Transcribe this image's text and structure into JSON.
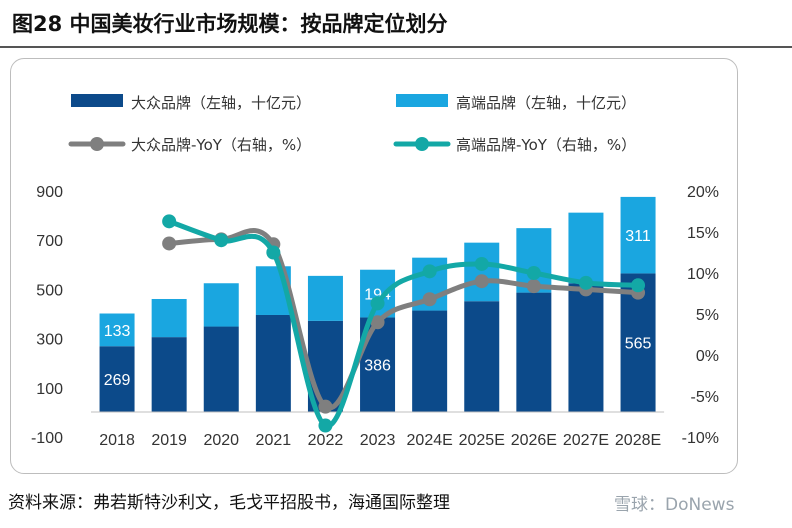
{
  "header": {
    "title": "图28 中国美妆行业市场规模：按品牌定位划分"
  },
  "footer": {
    "source": "资料来源：弗若斯特沙利文，毛戈平招股书，海通国际整理",
    "watermark": "雪球：DoNews"
  },
  "colors": {
    "mass": "#0c4a8a",
    "premium": "#1aa6e0",
    "mass_yoy": "#7f7f7f",
    "premium_yoy": "#13a8a6"
  },
  "chart_data": {
    "type": "bar",
    "stacked": true,
    "categories": [
      "2018",
      "2019",
      "2020",
      "2021",
      "2022",
      "2023",
      "2024E",
      "2025E",
      "2026E",
      "2027E",
      "2028E"
    ],
    "series": [
      {
        "name": "大众品牌（左轴，十亿元）",
        "axis": "left",
        "kind": "bar",
        "values": [
          269,
          306,
          349,
          396,
          372,
          386,
          414,
          452,
          487,
          525,
          565
        ]
      },
      {
        "name": "高端品牌（左轴，十亿元）",
        "axis": "left",
        "kind": "bar",
        "values": [
          133,
          155,
          176,
          198,
          183,
          194,
          215,
          238,
          262,
          287,
          311
        ]
      },
      {
        "name": "大众品牌-YoY（右轴，%）",
        "axis": "right",
        "kind": "line",
        "values": [
          null,
          13.6,
          14.1,
          13.5,
          -6.3,
          4.0,
          6.8,
          9.0,
          8.4,
          8.0,
          7.6
        ]
      },
      {
        "name": "高端品牌-YoY（右轴，%）",
        "axis": "right",
        "kind": "line",
        "values": [
          null,
          16.3,
          14.0,
          12.5,
          -8.6,
          6.3,
          10.2,
          11.1,
          10.0,
          8.8,
          8.5
        ]
      }
    ],
    "data_labels": [
      {
        "category": "2018",
        "series": 0,
        "text": "269"
      },
      {
        "category": "2018",
        "series": 1,
        "text": "133"
      },
      {
        "category": "2023",
        "series": 0,
        "text": "386"
      },
      {
        "category": "2023",
        "series": 1,
        "text": "194"
      },
      {
        "category": "2028E",
        "series": 0,
        "text": "565"
      },
      {
        "category": "2028E",
        "series": 1,
        "text": "311"
      }
    ],
    "left_axis": {
      "range": [
        -100,
        900
      ],
      "ticks": [
        "-100",
        "100",
        "300",
        "500",
        "700",
        "900"
      ],
      "tick_values": [
        -100,
        100,
        300,
        500,
        700,
        900
      ]
    },
    "right_axis": {
      "range": [
        -10,
        20
      ],
      "ticks": [
        "-10%",
        "-5%",
        "0%",
        "5%",
        "10%",
        "15%",
        "20%"
      ],
      "tick_values": [
        -10,
        -5,
        0,
        5,
        10,
        15,
        20
      ]
    },
    "legend_position": "top",
    "grid": false
  }
}
